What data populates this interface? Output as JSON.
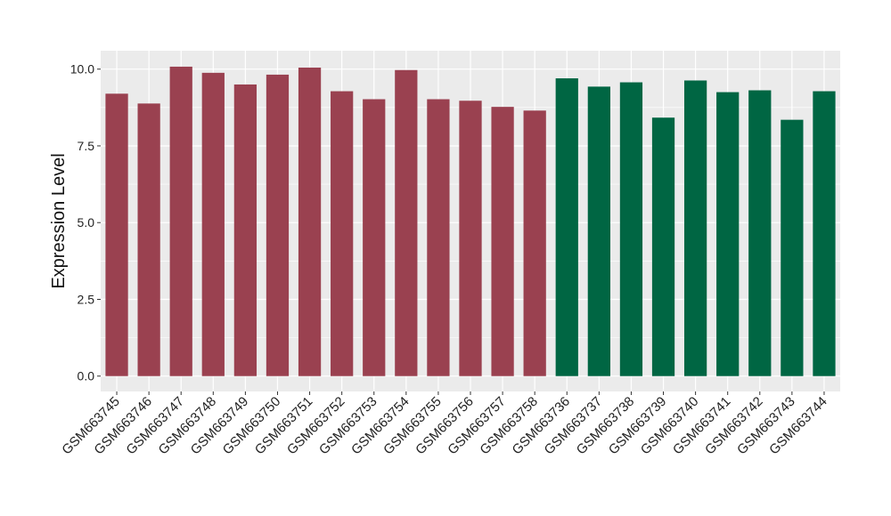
{
  "chart_data": {
    "type": "bar",
    "ylabel": "Expression Level",
    "xlabel": "",
    "ylim": [
      -0.5,
      10.6
    ],
    "yticks": [
      0.0,
      2.5,
      5.0,
      7.5,
      10.0
    ],
    "ytick_labels": [
      "0.0",
      "2.5",
      "5.0",
      "7.5",
      "10.0"
    ],
    "grid": true,
    "panel_background": "#EBEBEB",
    "grid_color": "#FFFFFF",
    "legend": "none",
    "categories": [
      "GSM663745",
      "GSM663746",
      "GSM663747",
      "GSM663748",
      "GSM663749",
      "GSM663750",
      "GSM663751",
      "GSM663752",
      "GSM663753",
      "GSM663754",
      "GSM663755",
      "GSM663756",
      "GSM663757",
      "GSM663758",
      "GSM663736",
      "GSM663737",
      "GSM663738",
      "GSM663739",
      "GSM663740",
      "GSM663741",
      "GSM663742",
      "GSM663743",
      "GSM663744"
    ],
    "values": [
      9.2,
      8.88,
      10.08,
      9.88,
      9.5,
      9.82,
      10.05,
      9.28,
      9.02,
      9.97,
      9.02,
      8.97,
      8.77,
      8.65,
      9.7,
      9.43,
      9.57,
      8.42,
      9.63,
      9.25,
      9.31,
      8.35,
      9.28
    ],
    "group_colors": [
      "#9A4150",
      "#006643"
    ],
    "bar_group": [
      0,
      0,
      0,
      0,
      0,
      0,
      0,
      0,
      0,
      0,
      0,
      0,
      0,
      0,
      1,
      1,
      1,
      1,
      1,
      1,
      1,
      1,
      1
    ]
  }
}
